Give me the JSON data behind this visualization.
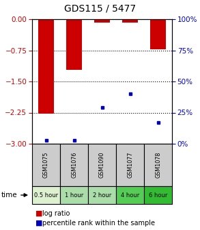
{
  "title": "GDS115 / 5477",
  "samples": [
    "GSM1075",
    "GSM1076",
    "GSM1090",
    "GSM1077",
    "GSM1078"
  ],
  "time_labels": [
    "0.5 hour",
    "1 hour",
    "2 hour",
    "4 hour",
    "6 hour"
  ],
  "time_colors": [
    "#ddf0d0",
    "#aaddaa",
    "#aaddaa",
    "#55cc55",
    "#33bb33"
  ],
  "log_ratios": [
    -2.28,
    -1.22,
    -0.08,
    -0.09,
    -0.72
  ],
  "percentile_ranks": [
    3,
    3,
    29,
    40,
    17
  ],
  "ylim_left": [
    -3,
    0
  ],
  "ylim_right": [
    0,
    100
  ],
  "yticks_left": [
    0,
    -0.75,
    -1.5,
    -2.25,
    -3
  ],
  "yticks_right": [
    100,
    75,
    50,
    25,
    0
  ],
  "left_color": "#cc0000",
  "right_color": "#0000cc",
  "bar_color": "#cc0000",
  "percentile_color": "#0000bb",
  "bar_width": 0.55,
  "bg_color": "#ffffff",
  "sample_bg": "#cccccc",
  "legend_log_ratio": "log ratio",
  "legend_percentile": "percentile rank within the sample",
  "time_label": "time"
}
